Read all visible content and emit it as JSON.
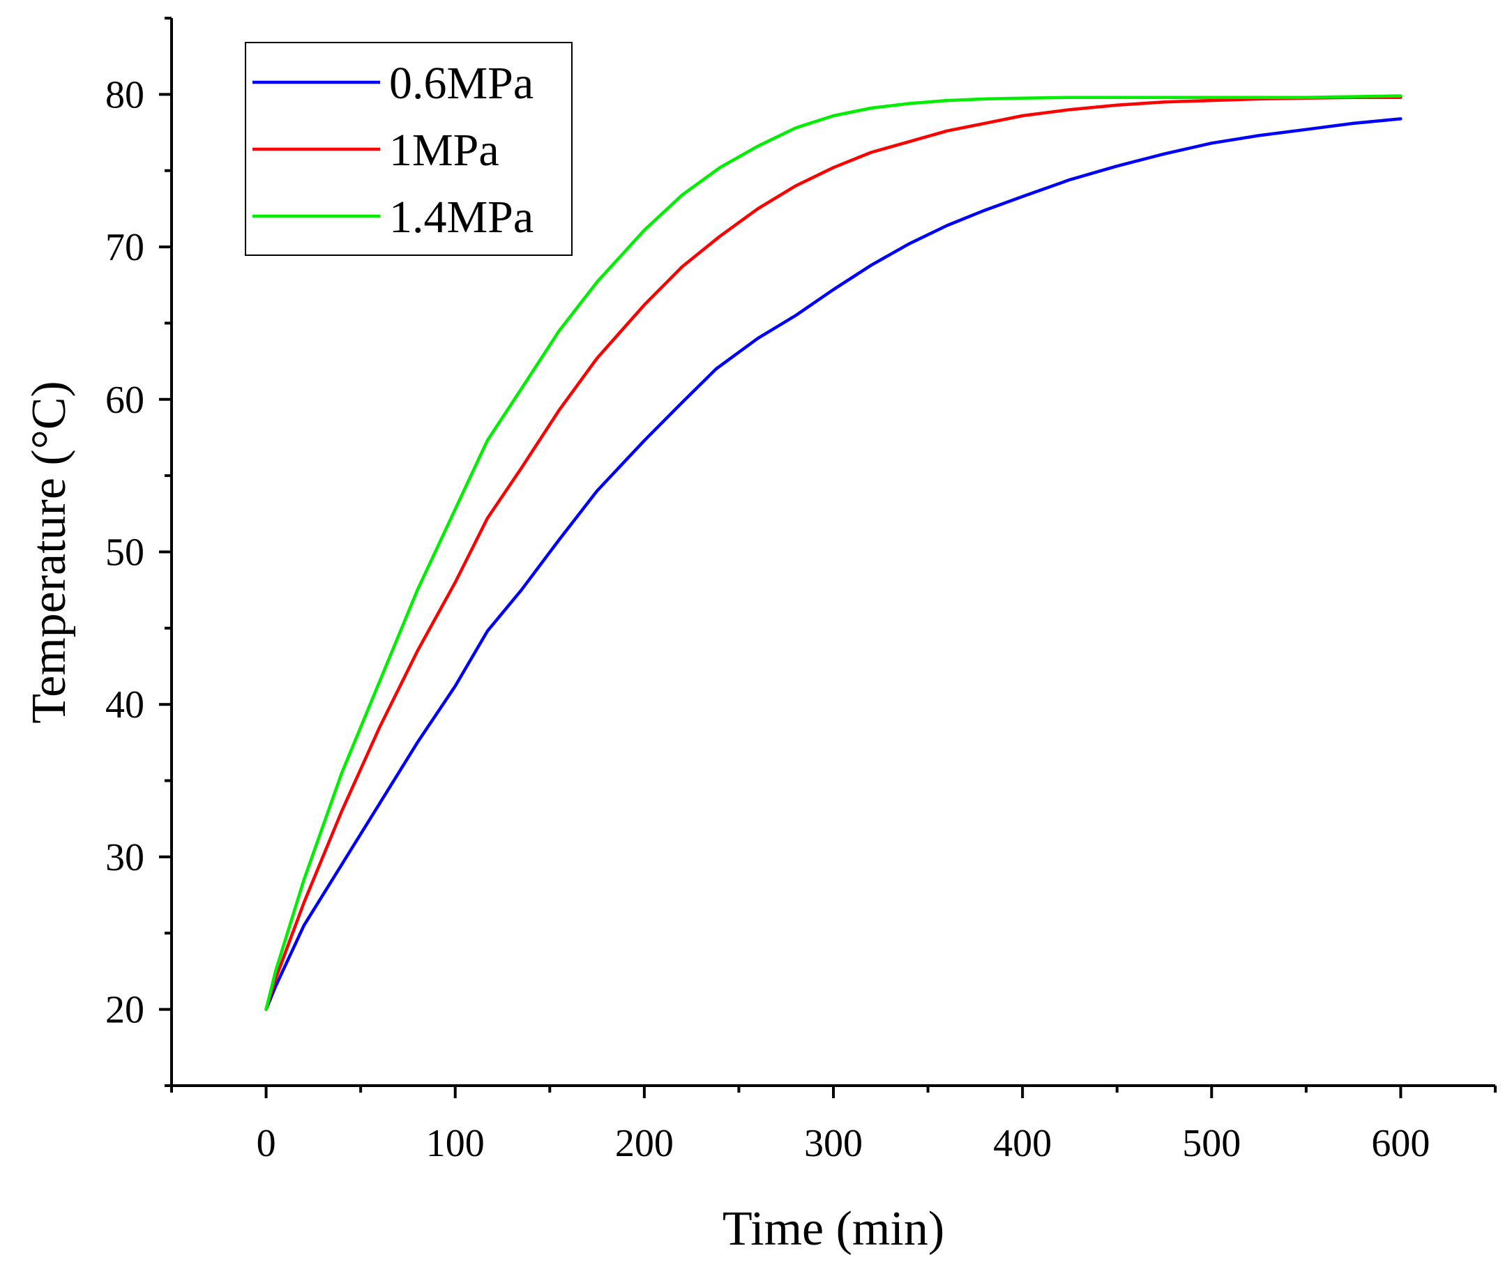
{
  "chart_data": {
    "type": "line",
    "title": "",
    "xlabel": "Time (min)",
    "ylabel": "Temperature (°C)",
    "xlim": [
      -50,
      650
    ],
    "ylim": [
      15,
      85
    ],
    "x_major_ticks": [
      0,
      100,
      200,
      300,
      400,
      500,
      600
    ],
    "x_minor_ticks": [
      -50,
      50,
      150,
      250,
      350,
      450,
      550,
      650
    ],
    "y_major_ticks": [
      20,
      30,
      40,
      50,
      60,
      70,
      80
    ],
    "y_minor_ticks": [
      15,
      25,
      35,
      45,
      55,
      65,
      75,
      85
    ],
    "grid": false,
    "legend_position": "top-left",
    "series": [
      {
        "name": "0.6MPa",
        "color": "#0000ff",
        "x": [
          0,
          5,
          20,
          40,
          60,
          80,
          100,
          117,
          135,
          155,
          175,
          200,
          220,
          238,
          260,
          280,
          300,
          320,
          340,
          360,
          380,
          400,
          425,
          450,
          475,
          500,
          525,
          550,
          575,
          600
        ],
        "y": [
          20,
          21.5,
          25.5,
          29.5,
          33.5,
          37.5,
          41.2,
          44.8,
          47.5,
          50.8,
          54,
          57.3,
          59.8,
          62,
          64,
          65.5,
          67.2,
          68.8,
          70.2,
          71.4,
          72.4,
          73.3,
          74.4,
          75.3,
          76.1,
          76.8,
          77.3,
          77.7,
          78.1,
          78.4
        ]
      },
      {
        "name": "1MPa",
        "color": "#ff0000",
        "x": [
          0,
          5,
          20,
          40,
          60,
          80,
          100,
          117,
          135,
          155,
          175,
          200,
          220,
          240,
          260,
          280,
          300,
          320,
          340,
          360,
          380,
          400,
          425,
          450,
          475,
          500,
          525,
          550,
          575,
          600
        ],
        "y": [
          20,
          22,
          27,
          33,
          38.5,
          43.5,
          48,
          52.2,
          55.5,
          59.3,
          62.7,
          66.2,
          68.7,
          70.7,
          72.5,
          74,
          75.2,
          76.2,
          76.9,
          77.6,
          78.1,
          78.6,
          79,
          79.3,
          79.5,
          79.6,
          79.7,
          79.75,
          79.8,
          79.8
        ]
      },
      {
        "name": "1.4MPa",
        "color": "#00ee00",
        "x": [
          0,
          5,
          20,
          40,
          60,
          80,
          100,
          117,
          135,
          155,
          175,
          200,
          220,
          240,
          260,
          280,
          300,
          320,
          340,
          360,
          380,
          400,
          425,
          450,
          475,
          500,
          525,
          550,
          575,
          600
        ],
        "y": [
          20,
          22.5,
          28.5,
          35.5,
          41.5,
          47.5,
          52.8,
          57.3,
          60.7,
          64.5,
          67.7,
          71.1,
          73.4,
          75.2,
          76.6,
          77.8,
          78.6,
          79.1,
          79.4,
          79.6,
          79.7,
          79.75,
          79.8,
          79.8,
          79.8,
          79.8,
          79.8,
          79.8,
          79.85,
          79.9
        ]
      }
    ]
  }
}
